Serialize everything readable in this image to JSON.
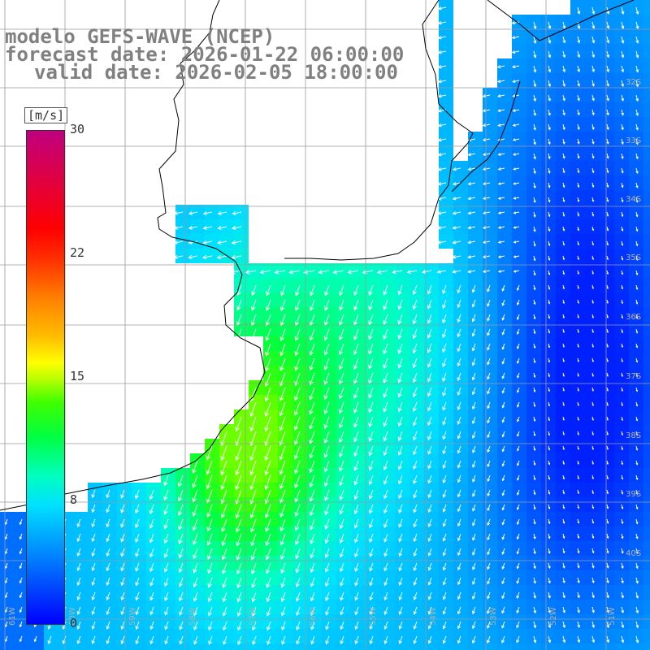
{
  "title": {
    "line1": "modelo GEFS-WAVE (NCEP)",
    "line2": "forecast date: 2026-01-22 06:00:00",
    "line3": "valid date: 2026-02-05 18:00:00"
  },
  "colorbar": {
    "units": "[m/s]",
    "ticks": [
      "30",
      "22",
      "15",
      "8",
      "0"
    ],
    "tick_values": [
      30,
      22,
      15,
      8,
      0
    ],
    "min": 0,
    "max": 30,
    "colors": [
      "#0000ff",
      "#00a0ff",
      "#00ffc0",
      "#40ff00",
      "#ffff00",
      "#ff8000",
      "#ff0000",
      "#c00080"
    ]
  },
  "axes": {
    "lat_labels": [
      "32S",
      "33S",
      "34S",
      "35S",
      "36S",
      "37S",
      "38S",
      "39S",
      "40S"
    ],
    "lon_labels": [
      "61W",
      "60W",
      "59W",
      "58W",
      "57W",
      "56W",
      "55W",
      "54W",
      "53W",
      "52W",
      "51W"
    ]
  },
  "colors": {
    "land": "#ffffff",
    "grid": "#9a9a9a",
    "coast": "#000000",
    "arrows": "#ffffff",
    "title": "#808080"
  }
}
